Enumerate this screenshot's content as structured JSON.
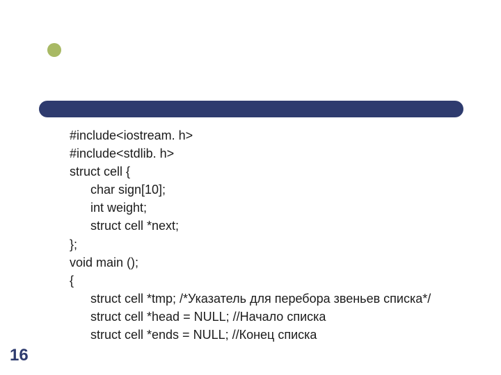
{
  "background_color": "#ffffff",
  "accent_color": "#2e3b6e",
  "bullet_color": "#a8b964",
  "text_color": "#1b1b1b",
  "slide_number_color": "#2e3b6e",
  "code_fontsize": 18,
  "slide_number_fontsize": 24,
  "code": {
    "l1": "#include<iostream. h>",
    "l2": "#include<stdlib. h>",
    "l3": "struct cell {",
    "l4": "char sign[10];",
    "l5": "int weight;",
    "l6": "struct cell *next;",
    "l7": "};",
    "l8": "void main ();",
    "l9": "{",
    "l10": "struct cell *tmp; /*Указатель для перебора звеньев списка*/",
    "l11": "struct cell *head = NULL; //Начало списка",
    "l12": "struct cell *ends = NULL; //Конец списка"
  },
  "slide_number": "16"
}
